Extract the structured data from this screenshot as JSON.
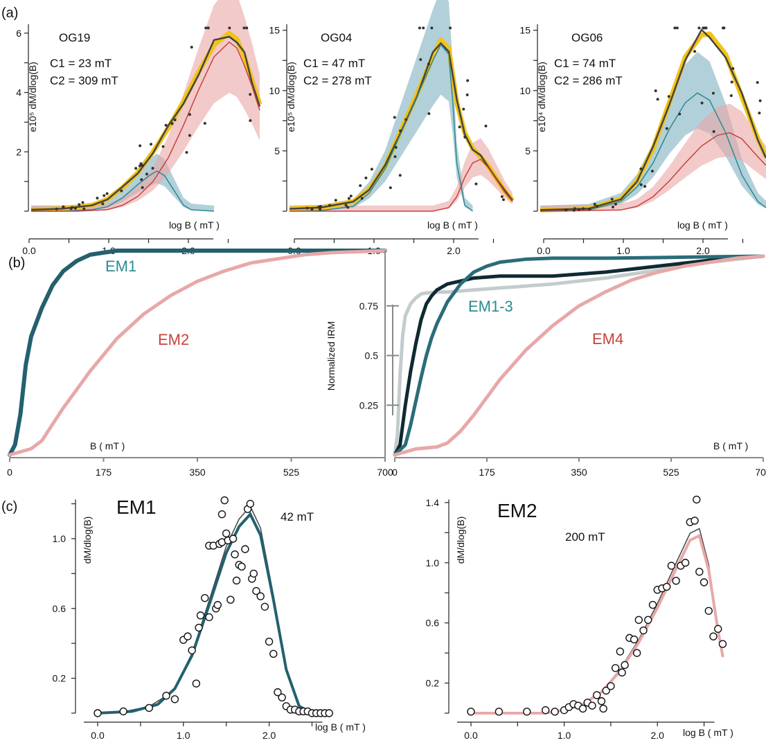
{
  "chart_data": [
    {
      "type": "line",
      "panel": "(a)",
      "sample": "OG19",
      "annotations": [
        "C1 = 23 mT",
        "C2 = 309 mT"
      ],
      "xlabel": "log B ( mT )",
      "ylabel": "e10⁵ dM/dlog(B)",
      "xticks": [
        "0.0",
        "1.0",
        "2.0"
      ],
      "yticks": [
        "2",
        "4",
        "6"
      ],
      "xlim": [
        0,
        3.0
      ],
      "ylim": [
        0,
        6.3
      ],
      "colors": {
        "C1": "#2a8a91",
        "C2": "#c8413d",
        "sum": "#f2c318",
        "data": "#444444"
      },
      "series": [
        {
          "x": [
            0,
            0.4,
            0.8,
            1.0,
            1.2,
            1.4,
            1.55,
            1.65,
            1.75,
            1.85,
            2.0,
            2.1,
            2.4
          ],
          "y": [
            0,
            0,
            0.05,
            0.15,
            0.45,
            0.9,
            1.2,
            1.35,
            1.2,
            0.8,
            0.2,
            0.05,
            0
          ]
        },
        {
          "x": [
            0,
            0.6,
            1.0,
            1.2,
            1.4,
            1.6,
            1.8,
            2.0,
            2.2,
            2.4,
            2.6,
            2.7,
            2.8,
            2.9,
            3.0
          ],
          "y": [
            0,
            0,
            0.05,
            0.2,
            0.5,
            1.0,
            1.8,
            2.9,
            4.1,
            5.2,
            5.7,
            5.5,
            4.9,
            4.2,
            3.4
          ]
        },
        {
          "x": [
            0,
            0.4,
            0.8,
            1.0,
            1.2,
            1.4,
            1.6,
            1.8,
            2.0,
            2.2,
            2.4,
            2.6,
            2.7,
            2.8,
            2.9,
            3.0
          ],
          "y": [
            0.05,
            0.08,
            0.2,
            0.4,
            0.8,
            1.3,
            2.0,
            2.8,
            3.7,
            4.7,
            5.6,
            6.0,
            5.8,
            5.2,
            4.4,
            3.6
          ]
        }
      ]
    },
    {
      "type": "line",
      "panel": "(a)",
      "sample": "OG04",
      "annotations": [
        "C1 = 47 mT",
        "C2 = 278 mT"
      ],
      "xlabel": "log B ( mT )",
      "ylabel": "e10⁵ dM/dlog(B)",
      "xticks": [
        "0.0",
        "1.0",
        "2.0"
      ],
      "yticks": [
        "5",
        "10",
        "15"
      ],
      "xlim": [
        0,
        2.8
      ],
      "ylim": [
        0,
        15.5
      ],
      "colors": {
        "C1": "#2a8a91",
        "C2": "#c8413d",
        "sum": "#f2c318",
        "data": "#444444"
      },
      "series": [
        {
          "x": [
            0,
            0.4,
            0.8,
            1.0,
            1.2,
            1.4,
            1.6,
            1.8,
            1.9,
            2.0,
            2.05,
            2.1,
            2.2,
            2.3
          ],
          "y": [
            0,
            0.05,
            0.4,
            1.5,
            3.5,
            6.5,
            9.5,
            12.5,
            13.8,
            13.0,
            9.0,
            4.0,
            0.5,
            0
          ]
        },
        {
          "x": [
            0,
            1.8,
            2.0,
            2.1,
            2.2,
            2.3,
            2.4,
            2.5,
            2.6,
            2.7,
            2.8
          ],
          "y": [
            0,
            0,
            0.3,
            1.2,
            2.8,
            4.0,
            4.3,
            3.6,
            2.6,
            1.6,
            0.8
          ]
        },
        {
          "x": [
            0,
            0.4,
            0.8,
            1.0,
            1.2,
            1.4,
            1.6,
            1.8,
            1.9,
            2.0,
            2.1,
            2.2,
            2.3,
            2.4,
            2.5,
            2.6,
            2.7,
            2.8
          ],
          "y": [
            0.2,
            0.3,
            0.8,
            1.8,
            3.7,
            6.7,
            9.7,
            12.8,
            14.2,
            13.5,
            9.0,
            6.5,
            5.2,
            4.5,
            3.7,
            2.7,
            1.7,
            0.9
          ]
        }
      ]
    },
    {
      "type": "line",
      "panel": "(a)",
      "sample": "OG06",
      "annotations": [
        "C1 = 74 mT",
        "C2 = 286 mT"
      ],
      "xlabel": "log B ( mT )",
      "ylabel": "e10⁴ dM/dlog(B)",
      "xticks": [
        "0.0",
        "1.0",
        "2.0"
      ],
      "yticks": [
        "5",
        "10",
        "15"
      ],
      "xlim": [
        0,
        2.8
      ],
      "ylim": [
        0,
        15.5
      ],
      "colors": {
        "C1": "#2a8a91",
        "C2": "#c8413d",
        "sum": "#f2c318",
        "data": "#444444"
      },
      "series": [
        {
          "x": [
            0,
            0.6,
            1.0,
            1.2,
            1.4,
            1.6,
            1.8,
            1.95,
            2.1,
            2.3,
            2.5,
            2.7,
            2.8
          ],
          "y": [
            0,
            0.1,
            0.8,
            2.0,
            4.0,
            6.8,
            9.0,
            9.8,
            9.2,
            6.5,
            3.0,
            0.8,
            0.3
          ]
        },
        {
          "x": [
            0,
            1.0,
            1.2,
            1.4,
            1.6,
            1.8,
            2.0,
            2.2,
            2.35,
            2.5,
            2.7,
            2.8
          ],
          "y": [
            0,
            0.1,
            0.4,
            1.2,
            2.5,
            4.0,
            5.4,
            6.3,
            6.5,
            6.0,
            4.5,
            3.8
          ]
        },
        {
          "x": [
            0,
            0.6,
            1.0,
            1.2,
            1.4,
            1.6,
            1.8,
            2.0,
            2.1,
            2.3,
            2.5,
            2.7,
            2.8
          ],
          "y": [
            0.1,
            0.2,
            1.0,
            2.5,
            5.2,
            9.0,
            12.8,
            14.6,
            14.7,
            13.0,
            9.5,
            6.0,
            4.5
          ]
        }
      ]
    },
    {
      "type": "line",
      "panel": "(b)",
      "xlabel": "B ( mT )",
      "xticks": [
        "0",
        "175",
        "350",
        "525",
        "700"
      ],
      "xlim": [
        0,
        700
      ],
      "ylim": [
        0,
        1
      ],
      "colors": {
        "EM1": "#24606f",
        "EM2": "#e8a8a8"
      },
      "series": [
        {
          "name": "EM1",
          "x": [
            0,
            10,
            20,
            30,
            40,
            60,
            80,
            100,
            125,
            150,
            175,
            200,
            250,
            700
          ],
          "y": [
            0,
            0.05,
            0.2,
            0.44,
            0.58,
            0.72,
            0.83,
            0.9,
            0.95,
            0.98,
            0.99,
            1.0,
            1.0,
            1.0
          ]
        },
        {
          "name": "EM2",
          "x": [
            0,
            40,
            60,
            80,
            100,
            125,
            150,
            175,
            200,
            250,
            300,
            350,
            400,
            450,
            500,
            550,
            600,
            650,
            700
          ],
          "y": [
            0,
            0.03,
            0.07,
            0.15,
            0.23,
            0.32,
            0.41,
            0.49,
            0.57,
            0.69,
            0.78,
            0.85,
            0.9,
            0.94,
            0.96,
            0.98,
            0.99,
            0.995,
            1.0
          ]
        }
      ]
    },
    {
      "type": "line",
      "panel": "(b)",
      "xlabel": "B ( mT )",
      "ylabel": "Normalized IRM",
      "xticks": [
        "0",
        "175",
        "350",
        "525",
        "700"
      ],
      "yticks": [
        "0.25",
        "0.5",
        "0.75"
      ],
      "xlim": [
        0,
        700
      ],
      "ylim": [
        0,
        1
      ],
      "colors": {
        "EM1": "#2a6c7a",
        "EM2": "#0f2a30",
        "EM3": "#c3cccd",
        "EM4": "#e8a8a8"
      },
      "series": [
        {
          "x": [
            0,
            5,
            10,
            15,
            20,
            30,
            40,
            50,
            60,
            80,
            100,
            150,
            200,
            300,
            400,
            500,
            600,
            700
          ],
          "y": [
            0,
            0.1,
            0.4,
            0.6,
            0.7,
            0.76,
            0.79,
            0.81,
            0.815,
            0.82,
            0.82,
            0.83,
            0.84,
            0.86,
            0.89,
            0.93,
            0.97,
            1.0
          ]
        },
        {
          "x": [
            0,
            10,
            20,
            30,
            40,
            50,
            60,
            70,
            80,
            100,
            150,
            200,
            300,
            400,
            500,
            600,
            700
          ],
          "y": [
            0,
            0.05,
            0.25,
            0.42,
            0.56,
            0.68,
            0.76,
            0.8,
            0.83,
            0.86,
            0.89,
            0.9,
            0.9,
            0.92,
            0.95,
            0.98,
            1.0
          ]
        },
        {
          "name": "EM1-3",
          "x": [
            0,
            20,
            30,
            40,
            50,
            60,
            70,
            80,
            100,
            125,
            150,
            175,
            200,
            250,
            300,
            400,
            500,
            600,
            700
          ],
          "y": [
            0,
            0.05,
            0.15,
            0.27,
            0.39,
            0.5,
            0.59,
            0.66,
            0.77,
            0.86,
            0.92,
            0.95,
            0.97,
            0.985,
            0.99,
            0.99,
            0.993,
            0.997,
            1.0
          ]
        },
        {
          "name": "EM4",
          "x": [
            0,
            40,
            80,
            100,
            125,
            150,
            175,
            200,
            250,
            300,
            350,
            400,
            450,
            500,
            550,
            600,
            650,
            700
          ],
          "y": [
            0,
            0.03,
            0.04,
            0.06,
            0.12,
            0.2,
            0.29,
            0.38,
            0.53,
            0.65,
            0.75,
            0.82,
            0.88,
            0.92,
            0.95,
            0.97,
            0.99,
            1.0
          ]
        }
      ]
    },
    {
      "type": "scatter",
      "panel": "(c)",
      "title": "EM1",
      "annotation": "42 mT",
      "xlabel": "log B ( mT )",
      "ylabel": "dM/dlog(B)",
      "xticks": [
        "0.0",
        "1.0",
        "2.0"
      ],
      "yticks": [
        "0.2",
        "0.6",
        "1.0"
      ],
      "xlim": [
        0,
        2.9
      ],
      "ylim": [
        0,
        1.25
      ],
      "colors": {
        "fit": "#24606f",
        "data": "#444444"
      },
      "points": {
        "x": [
          0.0,
          0.3,
          0.6,
          0.8,
          0.9,
          1.0,
          1.05,
          1.1,
          1.15,
          1.18,
          1.2,
          1.25,
          1.3,
          1.3,
          1.35,
          1.38,
          1.4,
          1.42,
          1.45,
          1.45,
          1.48,
          1.5,
          1.52,
          1.55,
          1.58,
          1.6,
          1.62,
          1.65,
          1.68,
          1.72,
          1.75,
          1.78,
          1.8,
          1.82,
          1.85,
          1.9,
          1.95,
          2.0,
          2.05,
          2.1,
          2.15,
          2.2,
          2.25,
          2.3,
          2.35,
          2.4,
          2.45,
          2.5,
          2.55,
          2.6,
          2.65,
          2.7
        ],
        "y": [
          0.0,
          0.01,
          0.03,
          0.1,
          0.08,
          0.42,
          0.44,
          0.36,
          0.17,
          0.49,
          0.56,
          0.66,
          0.55,
          0.96,
          0.96,
          0.6,
          0.62,
          0.97,
          0.98,
          1.14,
          1.22,
          1.03,
          0.99,
          0.65,
          1.0,
          0.91,
          0.76,
          0.85,
          0.84,
          0.94,
          1.17,
          1.2,
          0.77,
          0.8,
          0.7,
          0.67,
          0.61,
          0.41,
          0.34,
          0.12,
          0.09,
          0.04,
          0.02,
          0.02,
          0.01,
          0.01,
          0.01,
          0.0,
          0.0,
          0.0,
          0.0,
          0.0
        ]
      },
      "series": [
        {
          "x": [
            0,
            0.4,
            0.7,
            0.9,
            1.1,
            1.3,
            1.5,
            1.65,
            1.78,
            1.9,
            2.05,
            2.2,
            2.35,
            2.5
          ],
          "y": [
            0,
            0.01,
            0.05,
            0.14,
            0.33,
            0.62,
            0.92,
            1.07,
            1.14,
            1.02,
            0.65,
            0.25,
            0.04,
            0
          ]
        }
      ]
    },
    {
      "type": "scatter",
      "panel": "(c)",
      "title": "EM2",
      "annotation": "200 mT",
      "xlabel": "log B ( mT )",
      "ylabel": "dM/dlog(B)",
      "xticks": [
        "0.0",
        "1.0",
        "2.0"
      ],
      "yticks": [
        "0.2",
        "0.6",
        "1.0",
        "1.4"
      ],
      "xlim": [
        0,
        2.6
      ],
      "ylim": [
        0,
        1.45
      ],
      "colors": {
        "fit": "#e8a8a8",
        "data": "#444444"
      },
      "points": {
        "x": [
          0.0,
          0.3,
          0.6,
          0.8,
          0.9,
          1.0,
          1.05,
          1.1,
          1.15,
          1.2,
          1.25,
          1.3,
          1.35,
          1.4,
          1.42,
          1.45,
          1.5,
          1.55,
          1.6,
          1.62,
          1.65,
          1.7,
          1.75,
          1.78,
          1.8,
          1.85,
          1.9,
          1.95,
          2.0,
          2.05,
          2.1,
          2.15,
          2.2,
          2.25,
          2.3,
          2.35,
          2.4,
          2.42,
          2.45,
          2.5,
          2.55,
          2.6,
          2.65,
          2.7
        ],
        "y": [
          0.01,
          0.01,
          0.01,
          0.02,
          0.01,
          0.02,
          0.04,
          0.06,
          0.05,
          0.03,
          0.07,
          0.05,
          0.12,
          0.08,
          0.03,
          0.15,
          0.18,
          0.3,
          0.41,
          0.27,
          0.32,
          0.5,
          0.49,
          0.4,
          0.62,
          0.55,
          0.62,
          0.72,
          0.82,
          0.83,
          0.84,
          0.98,
          0.88,
          0.98,
          1.0,
          1.27,
          1.28,
          1.42,
          0.94,
          0.87,
          0.68,
          0.51,
          0.56,
          0.46
        ]
      },
      "series": [
        {
          "x": [
            0,
            0.8,
            1.0,
            1.2,
            1.4,
            1.6,
            1.8,
            2.0,
            2.2,
            2.35,
            2.45,
            2.55,
            2.65,
            2.7
          ],
          "y": [
            0,
            0,
            0.02,
            0.06,
            0.14,
            0.28,
            0.47,
            0.7,
            0.96,
            1.15,
            1.18,
            0.95,
            0.55,
            0.38
          ]
        }
      ]
    }
  ]
}
